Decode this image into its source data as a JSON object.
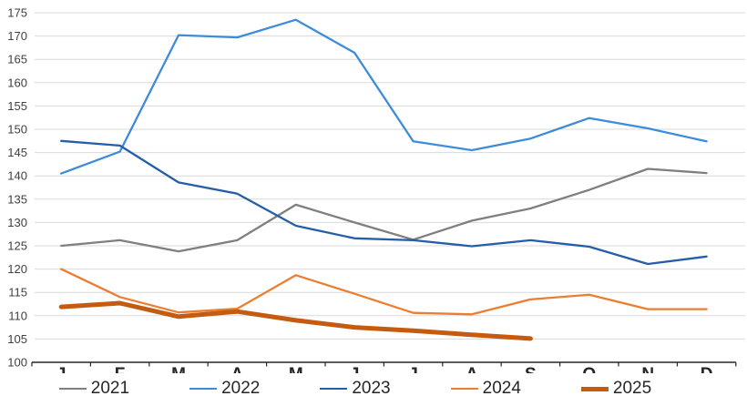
{
  "chart_data": {
    "type": "line",
    "title": "",
    "xlabel": "",
    "ylabel": "",
    "categories": [
      "J",
      "F",
      "M",
      "A",
      "M",
      "J",
      "J",
      "A",
      "S",
      "O",
      "N",
      "D"
    ],
    "ylim": [
      100,
      175
    ],
    "yticks": [
      100,
      105,
      110,
      115,
      120,
      125,
      130,
      135,
      140,
      145,
      150,
      155,
      160,
      165,
      170,
      175
    ],
    "grid": true,
    "legend_position": "bottom",
    "colors": {
      "gridline": "#d9d9d9",
      "axis_line": "#262626",
      "y_tick_text": "#404040",
      "x_tick_text": "#262626",
      "legend_text": "#262626"
    },
    "series": [
      {
        "name": "2021",
        "color": "#7f7f7f",
        "thick": false,
        "values": [
          125.0,
          126.2,
          123.8,
          126.2,
          133.8,
          130.0,
          126.3,
          130.4,
          133.0,
          137.0,
          141.5,
          140.6
        ]
      },
      {
        "name": "2022",
        "color": "#3d8cdc",
        "thick": false,
        "values": [
          140.5,
          145.2,
          170.2,
          169.7,
          173.5,
          166.4,
          147.4,
          145.5,
          148.0,
          152.4,
          150.2,
          147.4
        ]
      },
      {
        "name": "2023",
        "color": "#255ea8",
        "thick": false,
        "values": [
          147.5,
          146.5,
          138.6,
          136.2,
          129.3,
          126.6,
          126.2,
          124.9,
          126.2,
          124.8,
          121.1,
          122.7
        ]
      },
      {
        "name": "2024",
        "color": "#ed7d31",
        "thick": false,
        "values": [
          120.0,
          114.0,
          110.7,
          111.5,
          118.7,
          114.7,
          110.6,
          110.3,
          113.5,
          114.5,
          111.4,
          111.4
        ]
      },
      {
        "name": "2025",
        "color": "#c55a11",
        "thick": true,
        "values": [
          111.9,
          112.7,
          109.8,
          110.9,
          109.0,
          107.5,
          106.8,
          105.9,
          105.1
        ]
      }
    ]
  }
}
